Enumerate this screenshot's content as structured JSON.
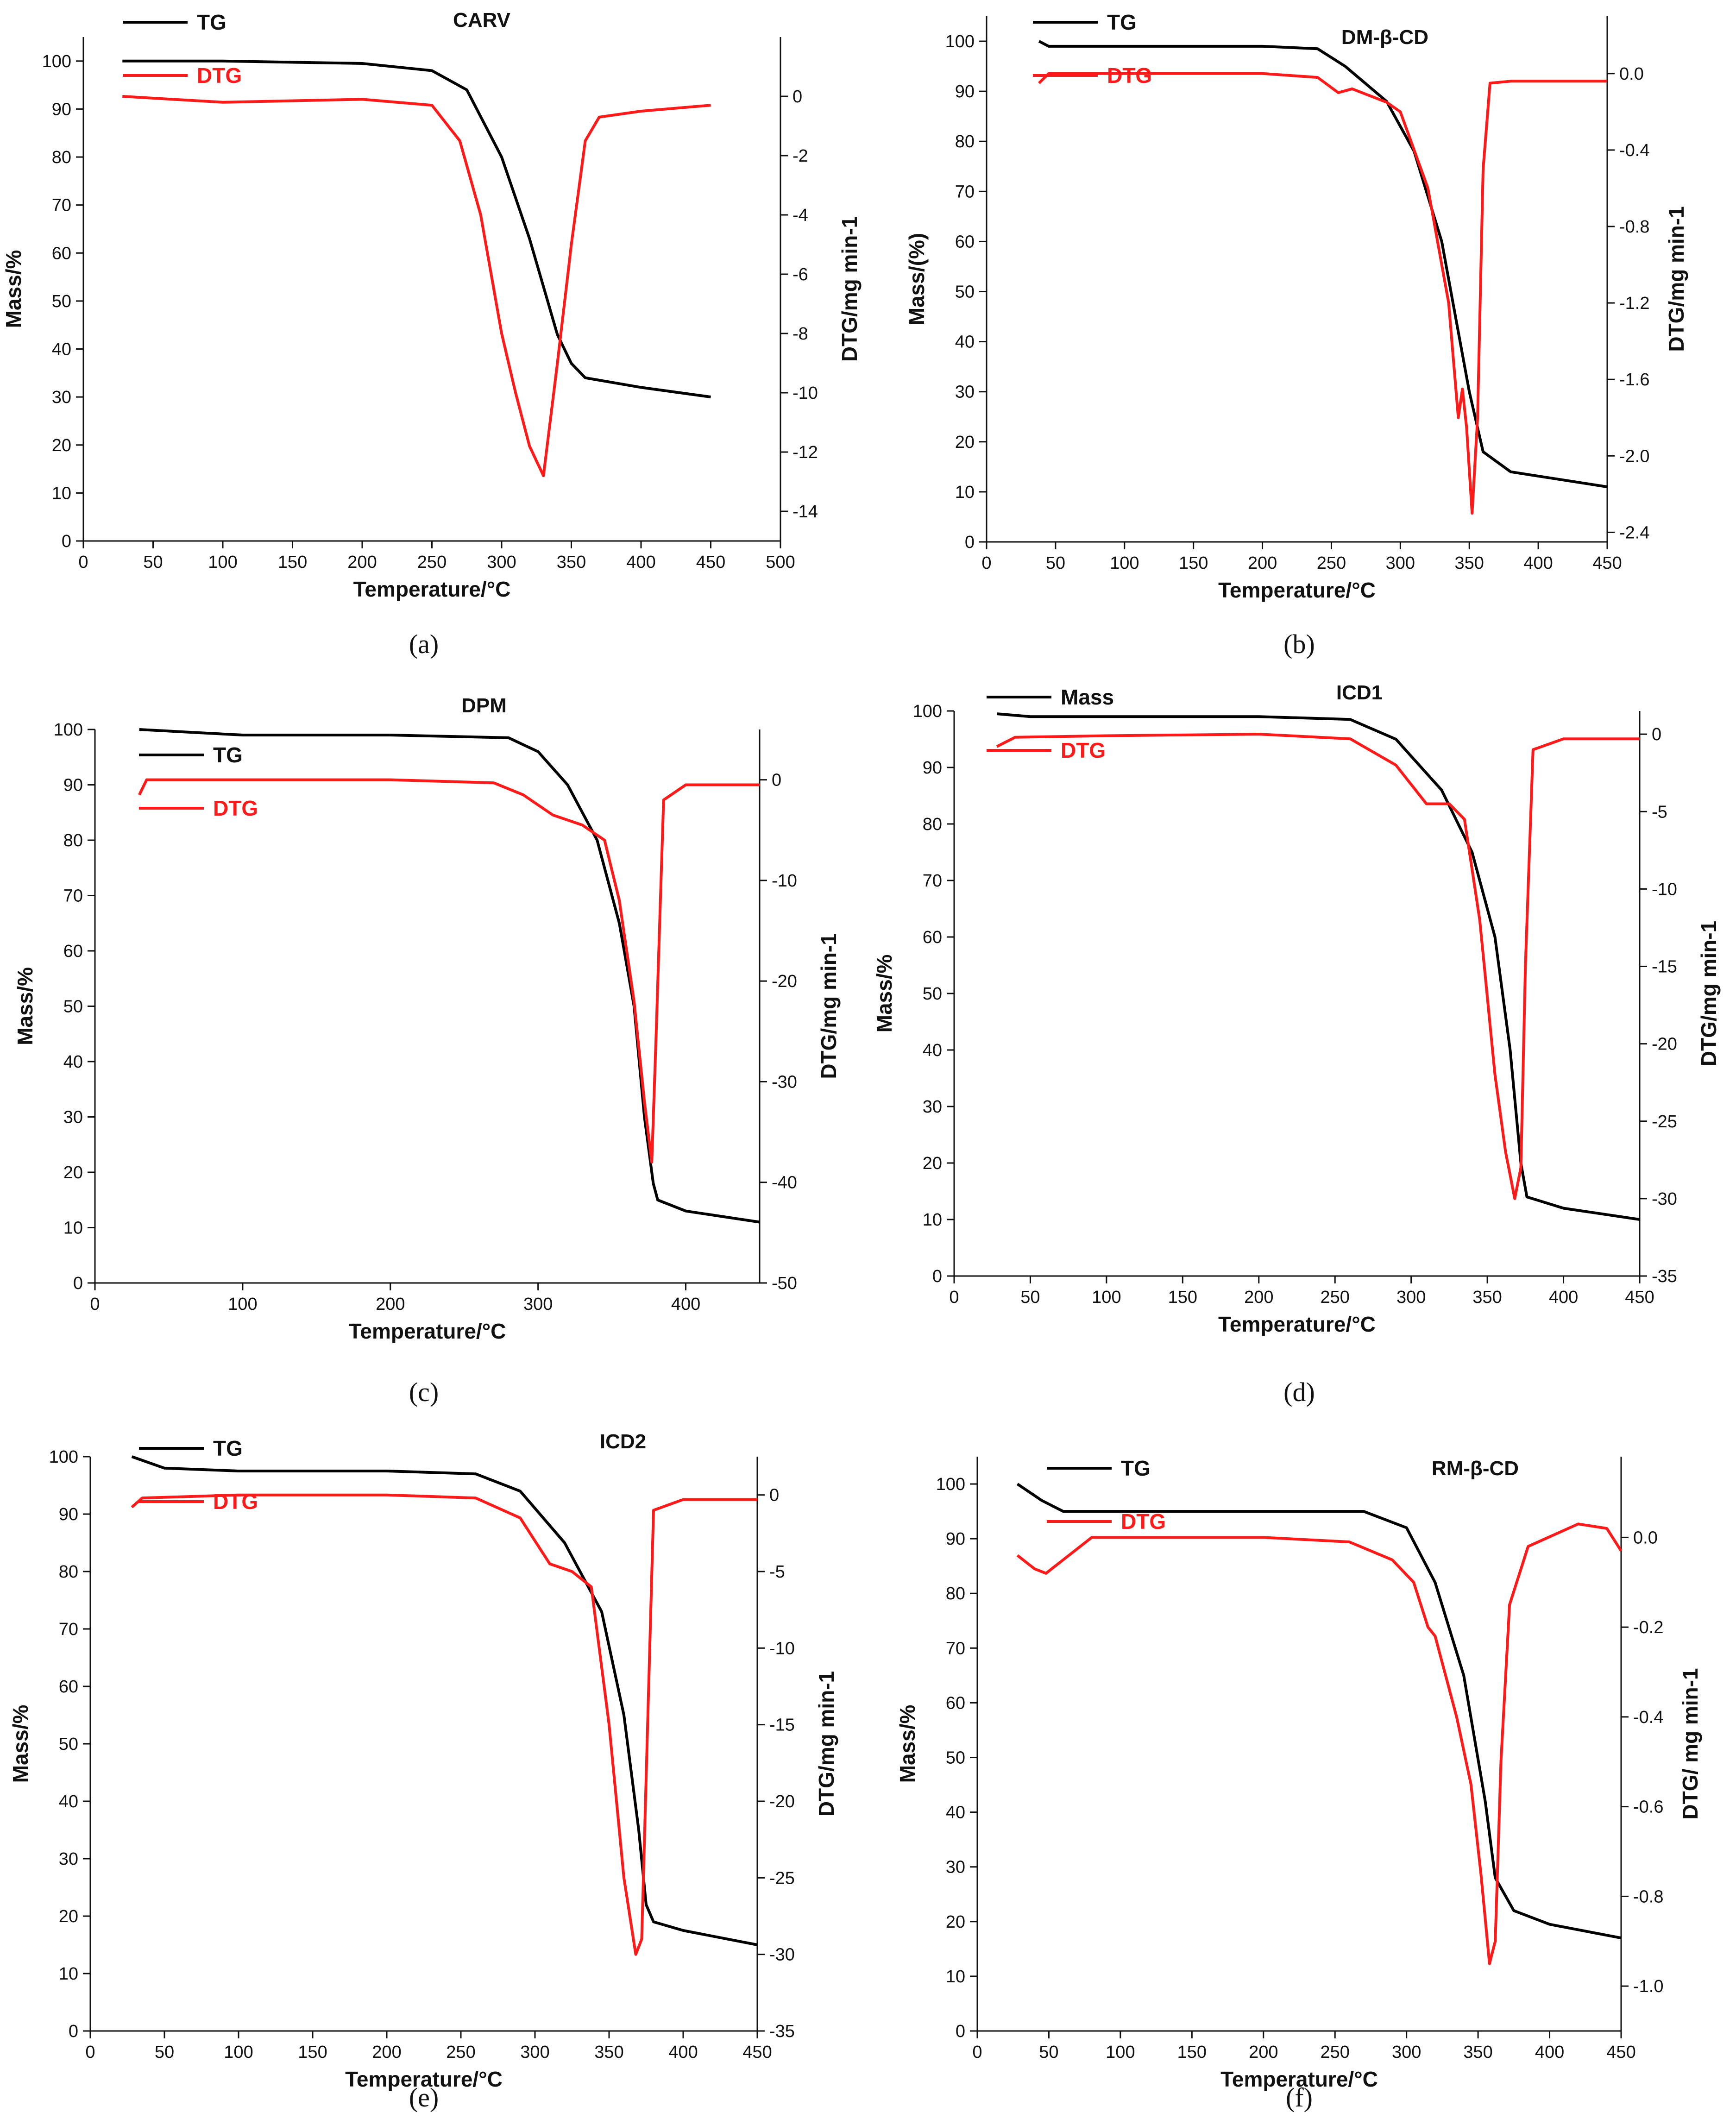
{
  "colors": {
    "tg": "#000000",
    "dtg": "#ff1a1a",
    "axis": "#111111"
  },
  "chart_data": [
    {
      "type": "line",
      "title": "CARV",
      "caption": "(a)",
      "xlabel": "Temperature/°C",
      "ylabel": "Mass/%",
      "y2label": "DTG/mg min-1",
      "xlim": [
        0,
        500
      ],
      "xticks": [
        0,
        50,
        100,
        150,
        200,
        250,
        300,
        350,
        400,
        450,
        500
      ],
      "ylim": [
        0,
        105
      ],
      "yticks": [
        0,
        10,
        20,
        30,
        40,
        50,
        60,
        70,
        80,
        90,
        100
      ],
      "y2lim": [
        -15,
        2
      ],
      "y2ticks": [
        0,
        -2,
        -4,
        -6,
        -8,
        -10,
        -12,
        -14
      ],
      "legend": [
        "TG",
        "DTG"
      ],
      "series": [
        {
          "name": "TG",
          "axis": "left",
          "x": [
            28,
            100,
            200,
            250,
            275,
            300,
            320,
            340,
            350,
            360,
            400,
            450
          ],
          "y": [
            100,
            100,
            99.5,
            98,
            94,
            80,
            63,
            43,
            37,
            34,
            32,
            30
          ]
        },
        {
          "name": "DTG",
          "axis": "right",
          "x": [
            28,
            100,
            200,
            250,
            270,
            285,
            300,
            310,
            320,
            330,
            340,
            350,
            360,
            370,
            400,
            450
          ],
          "y": [
            0,
            -0.2,
            -0.1,
            -0.3,
            -1.5,
            -4,
            -8,
            -10,
            -11.8,
            -12.8,
            -9,
            -5,
            -1.5,
            -0.7,
            -0.5,
            -0.3
          ]
        }
      ]
    },
    {
      "type": "line",
      "title": "DM-β-CD",
      "caption": "(b)",
      "xlabel": "Temperature/°C",
      "ylabel": "Mass/(%)",
      "y2label": "DTG/mg min-1",
      "xlim": [
        0,
        450
      ],
      "xticks": [
        0,
        50,
        100,
        150,
        200,
        250,
        300,
        350,
        400,
        450
      ],
      "ylim": [
        0,
        105
      ],
      "yticks": [
        0,
        10,
        20,
        30,
        40,
        50,
        60,
        70,
        80,
        90,
        100
      ],
      "y2lim": [
        -2.45,
        0.3
      ],
      "y2ticks": [
        0.0,
        -0.4,
        -0.8,
        -1.2,
        -1.6,
        -2.0,
        -2.4
      ],
      "legend": [
        "TG",
        "DTG"
      ],
      "series": [
        {
          "name": "TG",
          "axis": "left",
          "x": [
            38,
            45,
            100,
            200,
            240,
            260,
            290,
            310,
            330,
            340,
            350,
            360,
            380,
            450
          ],
          "y": [
            100,
            99,
            99,
            99,
            98.5,
            95,
            88,
            78,
            60,
            45,
            30,
            18,
            14,
            11
          ]
        },
        {
          "name": "DTG",
          "axis": "right",
          "x": [
            38,
            45,
            100,
            200,
            240,
            255,
            265,
            290,
            300,
            320,
            335,
            342,
            345,
            348,
            352,
            356,
            360,
            365,
            380,
            450
          ],
          "y": [
            -0.05,
            0.0,
            0.0,
            0.0,
            -0.02,
            -0.1,
            -0.08,
            -0.15,
            -0.2,
            -0.6,
            -1.2,
            -1.8,
            -1.65,
            -1.85,
            -2.3,
            -1.8,
            -0.5,
            -0.05,
            -0.04,
            -0.04
          ]
        }
      ]
    },
    {
      "type": "line",
      "title": "DPM",
      "caption": "(c)",
      "xlabel": "Temperature/°C",
      "ylabel": "Mass/%",
      "y2label": "DTG/mg min-1",
      "xlim": [
        0,
        450
      ],
      "xticks": [
        0,
        100,
        200,
        300,
        400
      ],
      "ylim": [
        0,
        100
      ],
      "yticks": [
        0,
        10,
        20,
        30,
        40,
        50,
        60,
        70,
        80,
        90,
        100
      ],
      "y2lim": [
        -50,
        5
      ],
      "y2ticks": [
        0,
        -10,
        -20,
        -30,
        -40,
        -50
      ],
      "legend": [
        "TG",
        "DTG"
      ],
      "series": [
        {
          "name": "TG",
          "axis": "left",
          "x": [
            30,
            100,
            200,
            280,
            300,
            320,
            340,
            355,
            365,
            372,
            378,
            381,
            400,
            450
          ],
          "y": [
            100,
            99,
            99,
            98.5,
            96,
            90,
            80,
            65,
            50,
            30,
            18,
            15,
            13,
            11
          ]
        },
        {
          "name": "DTG",
          "axis": "right",
          "x": [
            30,
            35,
            100,
            200,
            270,
            290,
            310,
            330,
            345,
            355,
            365,
            372,
            377,
            380,
            385,
            400,
            450
          ],
          "y": [
            -1.5,
            0.0,
            0.0,
            0.0,
            -0.3,
            -1.5,
            -3.5,
            -4.5,
            -6,
            -12,
            -22,
            -32,
            -38,
            -25,
            -2,
            -0.5,
            -0.5
          ]
        }
      ]
    },
    {
      "type": "line",
      "title": "ICD1",
      "caption": "(d)",
      "xlabel": "Temperature/°C",
      "ylabel": "Mass/%",
      "y2label": "DTG/mg min-1",
      "xlim": [
        0,
        450
      ],
      "xticks": [
        0,
        50,
        100,
        150,
        200,
        250,
        300,
        350,
        400,
        450
      ],
      "ylim": [
        0,
        100
      ],
      "yticks": [
        0,
        10,
        20,
        30,
        40,
        50,
        60,
        70,
        80,
        90,
        100
      ],
      "y2lim": [
        -35,
        1.5
      ],
      "y2ticks": [
        0,
        -5,
        -10,
        -15,
        -20,
        -25,
        -30,
        -35
      ],
      "legend": [
        "Mass",
        "DTG"
      ],
      "series": [
        {
          "name": "Mass",
          "axis": "left",
          "x": [
            28,
            50,
            100,
            200,
            260,
            290,
            320,
            340,
            355,
            365,
            372,
            376,
            400,
            450
          ],
          "y": [
            99.5,
            99,
            99,
            99,
            98.5,
            95,
            86,
            75,
            60,
            40,
            20,
            14,
            12,
            10
          ]
        },
        {
          "name": "DTG",
          "axis": "right",
          "x": [
            28,
            40,
            100,
            200,
            260,
            290,
            310,
            325,
            335,
            345,
            355,
            362,
            368,
            372,
            375,
            380,
            400,
            450
          ],
          "y": [
            -0.8,
            -0.2,
            -0.1,
            0.0,
            -0.3,
            -2.0,
            -4.5,
            -4.5,
            -5.5,
            -12,
            -22,
            -27,
            -30,
            -28,
            -15,
            -1,
            -0.3,
            -0.3
          ]
        }
      ]
    },
    {
      "type": "line",
      "title": "ICD2",
      "caption": "(e)",
      "xlabel": "Temperature/°C",
      "ylabel": "Mass/%",
      "y2label": "DTG/mg min-1",
      "xlim": [
        0,
        450
      ],
      "xticks": [
        0,
        50,
        100,
        150,
        200,
        250,
        300,
        350,
        400,
        450
      ],
      "ylim": [
        0,
        100
      ],
      "yticks": [
        0,
        10,
        20,
        30,
        40,
        50,
        60,
        70,
        80,
        90,
        100
      ],
      "y2lim": [
        -35,
        2.5
      ],
      "y2ticks": [
        0,
        -5,
        -10,
        -15,
        -20,
        -25,
        -30,
        -35
      ],
      "legend": [
        "TG",
        "DTG"
      ],
      "series": [
        {
          "name": "TG",
          "axis": "left",
          "x": [
            28,
            50,
            100,
            200,
            260,
            290,
            320,
            345,
            360,
            370,
            375,
            380,
            400,
            450
          ],
          "y": [
            100,
            98,
            97.5,
            97.5,
            97,
            94,
            85,
            73,
            55,
            35,
            22,
            19,
            17.5,
            15
          ]
        },
        {
          "name": "DTG",
          "axis": "right",
          "x": [
            28,
            35,
            100,
            200,
            260,
            290,
            310,
            325,
            338,
            350,
            360,
            368,
            372,
            376,
            380,
            400,
            450
          ],
          "y": [
            -0.8,
            -0.2,
            0.0,
            0.0,
            -0.2,
            -1.5,
            -4.5,
            -5,
            -6,
            -15,
            -25,
            -30,
            -29,
            -15,
            -1,
            -0.3,
            -0.3
          ]
        }
      ]
    },
    {
      "type": "line",
      "title": "RM-β-CD",
      "caption": "(f)",
      "xlabel": "Temperature/°C",
      "ylabel": "Mass/%",
      "y2label": "DTG/ mg min-1",
      "xlim": [
        0,
        450
      ],
      "xticks": [
        0,
        50,
        100,
        150,
        200,
        250,
        300,
        350,
        400,
        450
      ],
      "ylim": [
        0,
        105
      ],
      "yticks": [
        0,
        10,
        20,
        30,
        40,
        50,
        60,
        70,
        80,
        90,
        100
      ],
      "y2lim": [
        -1.1,
        0.18
      ],
      "y2ticks": [
        0.0,
        -0.2,
        -0.4,
        -0.6,
        -0.8,
        -1.0
      ],
      "legend": [
        "TG",
        "DTG"
      ],
      "series": [
        {
          "name": "TG",
          "axis": "left",
          "x": [
            28,
            45,
            60,
            100,
            200,
            270,
            300,
            320,
            340,
            355,
            362,
            375,
            400,
            450
          ],
          "y": [
            100,
            97,
            95,
            95,
            95,
            95,
            92,
            82,
            65,
            42,
            28,
            22,
            19.5,
            17
          ]
        },
        {
          "name": "DTG",
          "axis": "right",
          "x": [
            28,
            40,
            48,
            60,
            80,
            100,
            200,
            260,
            290,
            305,
            315,
            320,
            325,
            335,
            345,
            352,
            358,
            362,
            366,
            372,
            385,
            420,
            440,
            450
          ],
          "y": [
            -0.04,
            -0.07,
            -0.08,
            -0.05,
            0.0,
            0.0,
            0.0,
            -0.01,
            -0.05,
            -0.1,
            -0.2,
            -0.22,
            -0.28,
            -0.4,
            -0.55,
            -0.75,
            -0.95,
            -0.9,
            -0.5,
            -0.15,
            -0.02,
            0.03,
            0.02,
            -0.03
          ]
        }
      ]
    }
  ]
}
